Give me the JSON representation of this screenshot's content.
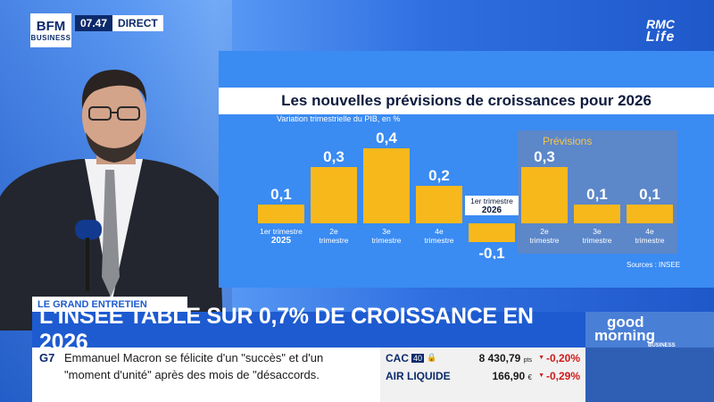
{
  "broadcast": {
    "channel_logo": {
      "line1": "BFM",
      "line2": "BUSINESS"
    },
    "time": "07.47",
    "live_label": "DIRECT",
    "partner_logo": {
      "line1": "RMC",
      "line2": "Life"
    }
  },
  "chart": {
    "title": "Les nouvelles prévisions de croissances pour 2026",
    "subtitle": "Variation trimestrielle du PIB, en %",
    "source": "Sources : INSEE",
    "forecast_label": "Prévisions"
  },
  "chart_data": {
    "type": "bar",
    "title": "Les nouvelles prévisions de croissances pour 2026",
    "ylabel": "Variation trimestrielle du PIB, en %",
    "categories": [
      {
        "line1": "1er trimestre",
        "line2": "2025"
      },
      {
        "line1": "2e",
        "line2": "trimestre"
      },
      {
        "line1": "3e",
        "line2": "trimestre"
      },
      {
        "line1": "4e",
        "line2": "trimestre"
      },
      {
        "line1": "1er trimestre",
        "line2": "2026"
      },
      {
        "line1": "2e",
        "line2": "trimestre"
      },
      {
        "line1": "3e",
        "line2": "trimestre"
      },
      {
        "line1": "4e",
        "line2": "trimestre"
      }
    ],
    "values": [
      0.1,
      0.3,
      0.4,
      0.2,
      -0.1,
      0.3,
      0.1,
      0.1
    ],
    "value_labels": [
      "0,1",
      "0,3",
      "0,4",
      "0,2",
      "-0,1",
      "0,3",
      "0,1",
      "0,1"
    ],
    "forecast_start_index": 5,
    "ylim": [
      -0.1,
      0.4
    ],
    "grid": false,
    "colors": {
      "bar": "#f7b81c",
      "forecast_zone": "#5c87c9",
      "negative_label_bg": "#ffffff"
    }
  },
  "lower_third": {
    "tag": "LE GRAND ENTRETIEN",
    "headline": "L'INSEE TABLE SUR 0,7% DE CROISSANCE EN 2026",
    "show_logo": {
      "line1": "good",
      "line2": "morning",
      "line3": "BUSINESS"
    }
  },
  "ticker": {
    "section": "G7",
    "line1": "Emmanuel Macron se félicite d'un \"succès\" et d'un",
    "line2": "\"moment d'unité\" après des mois de \"désaccords."
  },
  "markets": [
    {
      "name": "CAC",
      "badge": "40",
      "value": "8 430,79",
      "unit": "pts",
      "change": "-0,20%"
    },
    {
      "name": "AIR LIQUIDE",
      "badge": "",
      "value": "166,90",
      "unit": "€",
      "change": "-0,29%"
    }
  ],
  "colors": {
    "brand_blue": "#1e5bd0",
    "navy": "#0c2a6b",
    "negative": "#d11a1a"
  }
}
